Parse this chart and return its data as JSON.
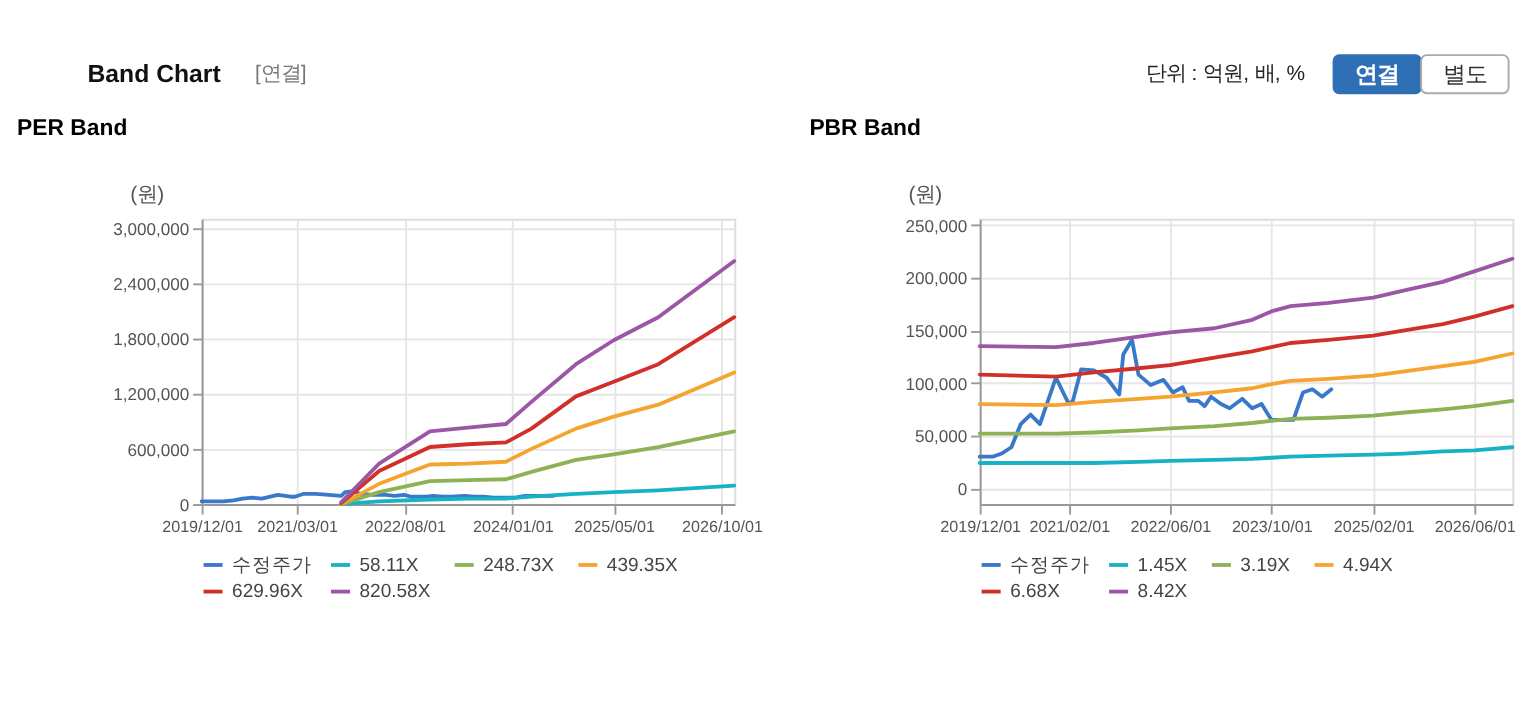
{
  "chart_data": [
    {
      "type": "line",
      "title": "PER Band",
      "ylabel": "(원)",
      "annotations": [
        "Band Chart",
        "[연결]",
        "단위 : 억원, 배, %",
        "연결",
        "별도"
      ],
      "xlim": [
        "2019-12-01",
        "2026-12-01"
      ],
      "xticks": [
        {
          "value": "2019-12-01",
          "label": "2019/12/01"
        },
        {
          "value": "2021-03-01",
          "label": "2021/03/01"
        },
        {
          "value": "2022-08-01",
          "label": "2022/08/01"
        },
        {
          "value": "2024-01-01",
          "label": "2024/01/01"
        },
        {
          "value": "2025-05-01",
          "label": "2025/05/01"
        },
        {
          "value": "2026-10-01",
          "label": "2026/10/01"
        }
      ],
      "ylim": [
        0,
        3100000
      ],
      "yticks": [
        0,
        {
          "value": 600000,
          "label": "600,000"
        },
        {
          "value": 1200000,
          "label": "1,200,000"
        },
        {
          "value": 1800000,
          "label": "1,800,000"
        },
        {
          "value": 2400000,
          "label": "2,400,000"
        },
        {
          "value": 3000000,
          "label": "3,000,000"
        }
      ],
      "grid": true,
      "legend": "bottom",
      "series": [
        {
          "name": "수정주가",
          "color": "#3a78c9",
          "x": [
            "2019-12-01",
            "2020-02-01",
            "2020-03-15",
            "2020-05-01",
            "2020-06-15",
            "2020-08-01",
            "2020-09-15",
            "2020-12-01",
            "2021-02-01",
            "2021-02-20",
            "2021-04-01",
            "2021-06-01",
            "2021-08-01",
            "2021-10-01",
            "2021-10-20",
            "2021-12-01",
            "2022-01-01",
            "2022-03-01",
            "2022-05-01",
            "2022-06-15",
            "2022-08-01",
            "2022-09-01",
            "2022-10-15",
            "2022-11-15",
            "2022-12-15",
            "2023-02-01",
            "2023-03-15",
            "2023-05-15",
            "2023-07-01",
            "2023-08-15",
            "2023-10-01",
            "2024-01-15",
            "2024-03-01",
            "2024-04-15",
            "2024-06-01",
            "2024-07-15"
          ],
          "values": [
            30000,
            30000,
            30000,
            40000,
            60000,
            70000,
            60000,
            100000,
            80000,
            80000,
            110000,
            110000,
            100000,
            90000,
            130000,
            140000,
            110000,
            100000,
            100000,
            90000,
            100000,
            80000,
            80000,
            80000,
            90000,
            80000,
            80000,
            90000,
            80000,
            80000,
            70000,
            70000,
            90000,
            90000,
            90000,
            90000
          ]
        },
        {
          "name": "58.11X",
          "color": "#17b2c4",
          "x": [
            "2021-10-01",
            "2022-04-01",
            "2022-12-01",
            "2023-06-01",
            "2023-12-01",
            "2024-04-01",
            "2024-11-01",
            "2025-05-01",
            "2025-12-01",
            "2026-12-01"
          ],
          "values": [
            0,
            30000,
            50000,
            60000,
            60000,
            80000,
            110000,
            130000,
            150000,
            200000
          ]
        },
        {
          "name": "248.73X",
          "color": "#8db255",
          "x": [
            "2021-10-01",
            "2022-04-01",
            "2022-12-01",
            "2023-06-01",
            "2023-12-01",
            "2024-04-01",
            "2024-11-01",
            "2025-05-01",
            "2025-12-01",
            "2026-12-01"
          ],
          "values": [
            0,
            130000,
            250000,
            260000,
            270000,
            350000,
            480000,
            540000,
            620000,
            790000
          ]
        },
        {
          "name": "439.35X",
          "color": "#f5a430",
          "x": [
            "2021-10-01",
            "2022-04-01",
            "2022-12-01",
            "2023-06-01",
            "2023-12-01",
            "2024-04-01",
            "2024-11-01",
            "2025-05-01",
            "2025-12-01",
            "2026-12-01"
          ],
          "values": [
            0,
            220000,
            430000,
            440000,
            460000,
            600000,
            820000,
            950000,
            1080000,
            1430000
          ]
        },
        {
          "name": "629.96X",
          "color": "#d0302a",
          "x": [
            "2021-10-01",
            "2022-04-01",
            "2022-12-01",
            "2023-06-01",
            "2023-12-01",
            "2024-04-01",
            "2024-11-01",
            "2025-05-01",
            "2025-12-01",
            "2026-12-01"
          ],
          "values": [
            10000,
            360000,
            620000,
            650000,
            670000,
            820000,
            1170000,
            1330000,
            1520000,
            2030000
          ]
        },
        {
          "name": "820.58X",
          "color": "#9b57a5",
          "x": [
            "2021-10-01",
            "2022-04-01",
            "2022-12-01",
            "2023-06-01",
            "2023-12-01",
            "2024-04-01",
            "2024-11-01",
            "2025-05-01",
            "2025-12-01",
            "2026-12-01"
          ],
          "values": [
            20000,
            440000,
            790000,
            830000,
            870000,
            1110000,
            1520000,
            1780000,
            2030000,
            2640000
          ]
        }
      ]
    },
    {
      "type": "line",
      "title": "PBR Band",
      "ylabel": "(원)",
      "xlim": [
        "2019-12-01",
        "2026-12-01"
      ],
      "xticks": [
        {
          "value": "2019-12-01",
          "label": "2019/12/01"
        },
        {
          "value": "2021-02-01",
          "label": "2021/02/01"
        },
        {
          "value": "2022-06-01",
          "label": "2022/06/01"
        },
        {
          "value": "2023-10-01",
          "label": "2023/10/01"
        },
        {
          "value": "2025-02-01",
          "label": "2025/02/01"
        },
        {
          "value": "2026-06-01",
          "label": "2026/06/01"
        }
      ],
      "ylim": [
        -15000,
        256000
      ],
      "yticks": [
        0,
        {
          "value": 50000,
          "label": "50,000"
        },
        {
          "value": 100000,
          "label": "100,000"
        },
        {
          "value": 150000,
          "label": "150,000"
        },
        {
          "value": 200000,
          "label": "200,000"
        },
        {
          "value": 250000,
          "label": "250,000"
        }
      ],
      "grid": true,
      "legend": "bottom",
      "series": [
        {
          "name": "수정주가",
          "color": "#3a78c9",
          "x": [
            "2019-12-01",
            "2020-02-01",
            "2020-03-15",
            "2020-05-01",
            "2020-06-15",
            "2020-08-01",
            "2020-09-15",
            "2020-12-01",
            "2021-02-01",
            "2021-02-20",
            "2021-04-01",
            "2021-06-01",
            "2021-08-01",
            "2021-10-01",
            "2021-10-20",
            "2021-12-01",
            "2022-01-01",
            "2022-03-01",
            "2022-05-01",
            "2022-06-15",
            "2022-08-01",
            "2022-09-01",
            "2022-10-15",
            "2022-11-15",
            "2022-12-15",
            "2023-02-01",
            "2023-03-15",
            "2023-05-15",
            "2023-07-01",
            "2023-08-15",
            "2023-10-01",
            "2024-01-15",
            "2024-03-01",
            "2024-04-15",
            "2024-06-01",
            "2024-07-15"
          ],
          "values": [
            30000,
            30000,
            33000,
            39000,
            61000,
            70000,
            61000,
            105000,
            80000,
            83000,
            113000,
            112000,
            105000,
            89000,
            127000,
            141000,
            108000,
            98000,
            103000,
            91000,
            96000,
            83000,
            83000,
            78000,
            87000,
            80000,
            76000,
            85000,
            76000,
            80000,
            65000,
            65000,
            91000,
            94000,
            87000,
            94000
          ]
        },
        {
          "name": "1.45X",
          "color": "#17b2c4",
          "x": [
            "2019-12-01",
            "2020-12-01",
            "2021-06-01",
            "2022-01-01",
            "2022-06-01",
            "2023-01-01",
            "2023-07-01",
            "2023-10-01",
            "2024-01-01",
            "2024-07-01",
            "2025-02-01",
            "2025-07-01",
            "2026-01-01",
            "2026-06-01",
            "2026-12-01"
          ],
          "values": [
            24000,
            24000,
            24000,
            25000,
            26000,
            27000,
            28000,
            29000,
            30000,
            31000,
            32000,
            33000,
            35000,
            36000,
            39000
          ]
        },
        {
          "name": "3.19X",
          "color": "#8db255",
          "x": [
            "2019-12-01",
            "2020-12-01",
            "2021-06-01",
            "2022-01-01",
            "2022-06-01",
            "2023-01-01",
            "2023-07-01",
            "2023-10-01",
            "2024-01-01",
            "2024-07-01",
            "2025-02-01",
            "2025-07-01",
            "2026-01-01",
            "2026-06-01",
            "2026-12-01"
          ],
          "values": [
            52000,
            52000,
            53000,
            55000,
            57000,
            59000,
            62000,
            64000,
            66000,
            67000,
            69000,
            72000,
            75000,
            78000,
            83000
          ]
        },
        {
          "name": "4.94X",
          "color": "#f5a430",
          "x": [
            "2019-12-01",
            "2020-12-01",
            "2021-06-01",
            "2022-01-01",
            "2022-06-01",
            "2023-01-01",
            "2023-07-01",
            "2023-10-01",
            "2024-01-01",
            "2024-07-01",
            "2025-02-01",
            "2025-07-01",
            "2026-01-01",
            "2026-06-01",
            "2026-12-01"
          ],
          "values": [
            80000,
            79000,
            82000,
            85000,
            87000,
            91000,
            95000,
            99000,
            102000,
            104000,
            107000,
            111000,
            116000,
            120000,
            128000
          ]
        },
        {
          "name": "6.68X",
          "color": "#d0302a",
          "x": [
            "2019-12-01",
            "2020-12-01",
            "2021-06-01",
            "2022-01-01",
            "2022-06-01",
            "2023-01-01",
            "2023-07-01",
            "2023-10-01",
            "2024-01-01",
            "2024-07-01",
            "2025-02-01",
            "2025-07-01",
            "2026-01-01",
            "2026-06-01",
            "2026-12-01"
          ],
          "values": [
            108000,
            106000,
            110000,
            114000,
            117000,
            124000,
            130000,
            134000,
            138000,
            141000,
            145000,
            150000,
            156000,
            163000,
            173000
          ]
        },
        {
          "name": "8.42X",
          "color": "#9b57a5",
          "x": [
            "2019-12-01",
            "2020-12-01",
            "2021-06-01",
            "2022-01-01",
            "2022-06-01",
            "2023-01-01",
            "2023-07-01",
            "2023-10-01",
            "2024-01-01",
            "2024-07-01",
            "2025-02-01",
            "2025-07-01",
            "2026-01-01",
            "2026-06-01",
            "2026-12-01"
          ],
          "values": [
            135000,
            134000,
            138000,
            144000,
            148000,
            152000,
            160000,
            168000,
            173000,
            176000,
            181000,
            188000,
            196000,
            206000,
            218000
          ]
        }
      ]
    }
  ]
}
